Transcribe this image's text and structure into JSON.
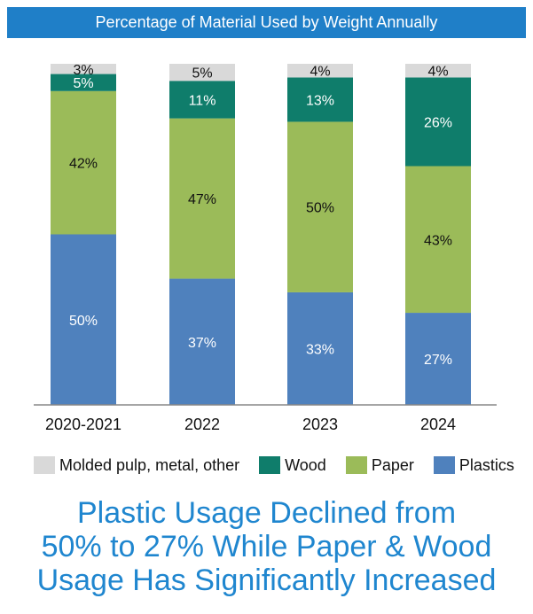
{
  "chart_data": {
    "type": "stacked-bar",
    "title": "Percentage of Material Used by Weight Annually",
    "categories": [
      "2020-2021",
      "2022",
      "2023",
      "2024"
    ],
    "series": [
      {
        "name": "Plastics",
        "values": [
          50,
          37,
          33,
          27
        ],
        "color": "#4f81bd",
        "label_color": "#ffffff"
      },
      {
        "name": "Paper",
        "values": [
          42,
          47,
          50,
          43
        ],
        "color": "#9bbb59",
        "label_color": "#111111"
      },
      {
        "name": "Wood",
        "values": [
          5,
          11,
          13,
          26
        ],
        "color": "#0f7d6b",
        "label_color": "#ffffff"
      },
      {
        "name": "Molded pulp, metal, other",
        "values": [
          3,
          5,
          4,
          4
        ],
        "color": "#d9d9d9",
        "label_color": "#111111"
      }
    ],
    "data_labels": [
      [
        "50%",
        "42%",
        "5%",
        "3%"
      ],
      [
        "37%",
        "47%",
        "11%",
        "5%"
      ],
      [
        "33%",
        "50%",
        "13%",
        "4%"
      ],
      [
        "27%",
        "43%",
        "26%",
        "4%"
      ]
    ],
    "ylim": [
      0,
      100
    ],
    "grid": false,
    "legend": "bottom",
    "legend_order": [
      "Molded pulp, metal, other",
      "Wood",
      "Paper",
      "Plastics"
    ]
  },
  "headline": {
    "line1": "Plastic Usage Declined from",
    "line2": "50% to 27% While Paper & Wood",
    "line3": "Usage Has Significantly Increased"
  },
  "colors": {
    "title_bar": "#1f7fc8",
    "headline": "#1f86cf"
  }
}
